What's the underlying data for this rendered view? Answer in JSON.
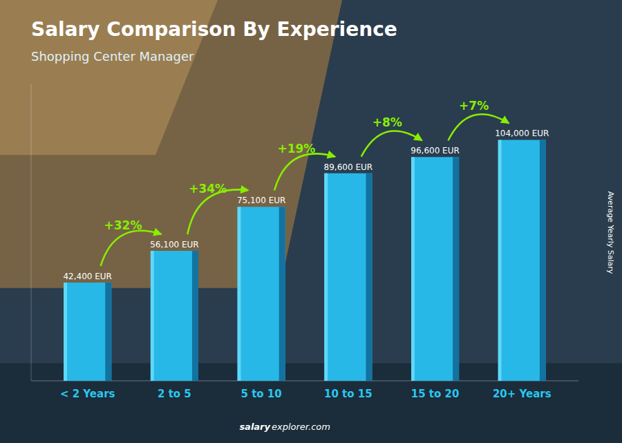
{
  "chart_data": {
    "type": "bar",
    "title": "Salary Comparison By Experience",
    "subtitle": "Shopping Center Manager",
    "ylabel": "Average Yearly Salary",
    "categories": [
      "< 2 Years",
      "2 to 5",
      "5 to 10",
      "10 to 15",
      "15 to 20",
      "20+ Years"
    ],
    "values": [
      42400,
      56100,
      75100,
      89600,
      96600,
      104000
    ],
    "value_labels": [
      "42,400 EUR",
      "56,100 EUR",
      "75,100 EUR",
      "89,600 EUR",
      "96,600 EUR",
      "104,000 EUR"
    ],
    "data_labels": true,
    "annotations": [
      "+32%",
      "+34%",
      "+19%",
      "+8%",
      "+7%"
    ],
    "watermark": [
      "salary",
      "explorer.com"
    ],
    "color": "#28b8e8",
    "ylim": [
      0,
      128000
    ],
    "tick_labels": "x",
    "grid": false
  }
}
